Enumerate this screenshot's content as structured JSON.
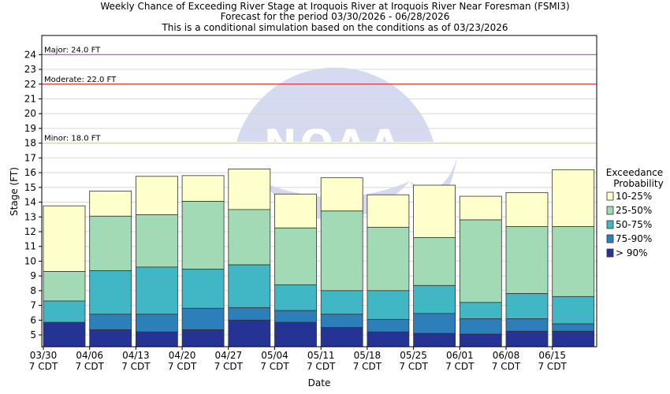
{
  "chart_data": {
    "type": "bar",
    "title": "Weekly Chance of Exceeding River Stage at Iroquois River at Iroquois River Near Foresman (FSMI3)",
    "subtitle_1": "Forecast for the period 03/30/2026 - 06/28/2026",
    "subtitle_2": "This is a conditional simulation based on the conditions as of 03/23/2026",
    "xlabel": "Date",
    "ylabel": "Stage (FT)",
    "ylim": [
      4.2,
      25.3
    ],
    "y_ticks": [
      5,
      6,
      7,
      8,
      9,
      10,
      11,
      12,
      13,
      14,
      15,
      16,
      17,
      18,
      19,
      20,
      21,
      22,
      23,
      24
    ],
    "grid": true,
    "categories": [
      {
        "date": "03/30",
        "tz": "7 CDT"
      },
      {
        "date": "04/06",
        "tz": "7 CDT"
      },
      {
        "date": "04/13",
        "tz": "7 CDT"
      },
      {
        "date": "04/20",
        "tz": "7 CDT"
      },
      {
        "date": "04/27",
        "tz": "7 CDT"
      },
      {
        "date": "05/04",
        "tz": "7 CDT"
      },
      {
        "date": "05/11",
        "tz": "7 CDT"
      },
      {
        "date": "05/18",
        "tz": "7 CDT"
      },
      {
        "date": "05/25",
        "tz": "7 CDT"
      },
      {
        "date": "06/01",
        "tz": "7 CDT"
      },
      {
        "date": "06/08",
        "tz": "7 CDT"
      },
      {
        "date": "06/15",
        "tz": "7 CDT"
      }
    ],
    "legend_title": [
      "Exceedance",
      "Probability"
    ],
    "legend_position": "right",
    "series": [
      {
        "name": "10-25%",
        "color": "#ffffcc",
        "values": [
          13.75,
          14.75,
          15.75,
          15.8,
          16.25,
          14.55,
          15.65,
          14.5,
          15.15,
          14.4,
          14.65,
          16.2
        ]
      },
      {
        "name": "25-50%",
        "color": "#a1dab4",
        "values": [
          9.3,
          13.05,
          13.15,
          14.05,
          13.5,
          12.25,
          13.4,
          12.3,
          11.6,
          12.8,
          12.35,
          12.35
        ]
      },
      {
        "name": "50-75%",
        "color": "#41b6c4",
        "values": [
          7.3,
          9.35,
          9.6,
          9.45,
          9.75,
          8.4,
          8.0,
          8.0,
          8.35,
          7.2,
          7.8,
          7.6
        ]
      },
      {
        "name": "75-90%",
        "color": "#2c7fb8",
        "values": [
          5.85,
          6.4,
          6.4,
          6.8,
          6.85,
          6.65,
          6.4,
          6.05,
          6.45,
          6.1,
          6.1,
          5.75
        ]
      },
      {
        "name": "> 90%",
        "color": "#253494",
        "values": [
          5.85,
          5.35,
          5.2,
          5.35,
          6.0,
          5.85,
          5.5,
          5.2,
          5.1,
          5.05,
          5.25,
          5.25
        ]
      }
    ],
    "thresholds": [
      {
        "label": "Major: 24.0 FT",
        "value": 24.0,
        "color": "#cc44cc"
      },
      {
        "label": "Moderate: 22.0 FT",
        "value": 22.0,
        "color": "#dd3333"
      },
      {
        "label": "Minor: 18.0 FT",
        "value": 18.0,
        "color": "#dddd66"
      }
    ],
    "watermark": "NOAA"
  }
}
